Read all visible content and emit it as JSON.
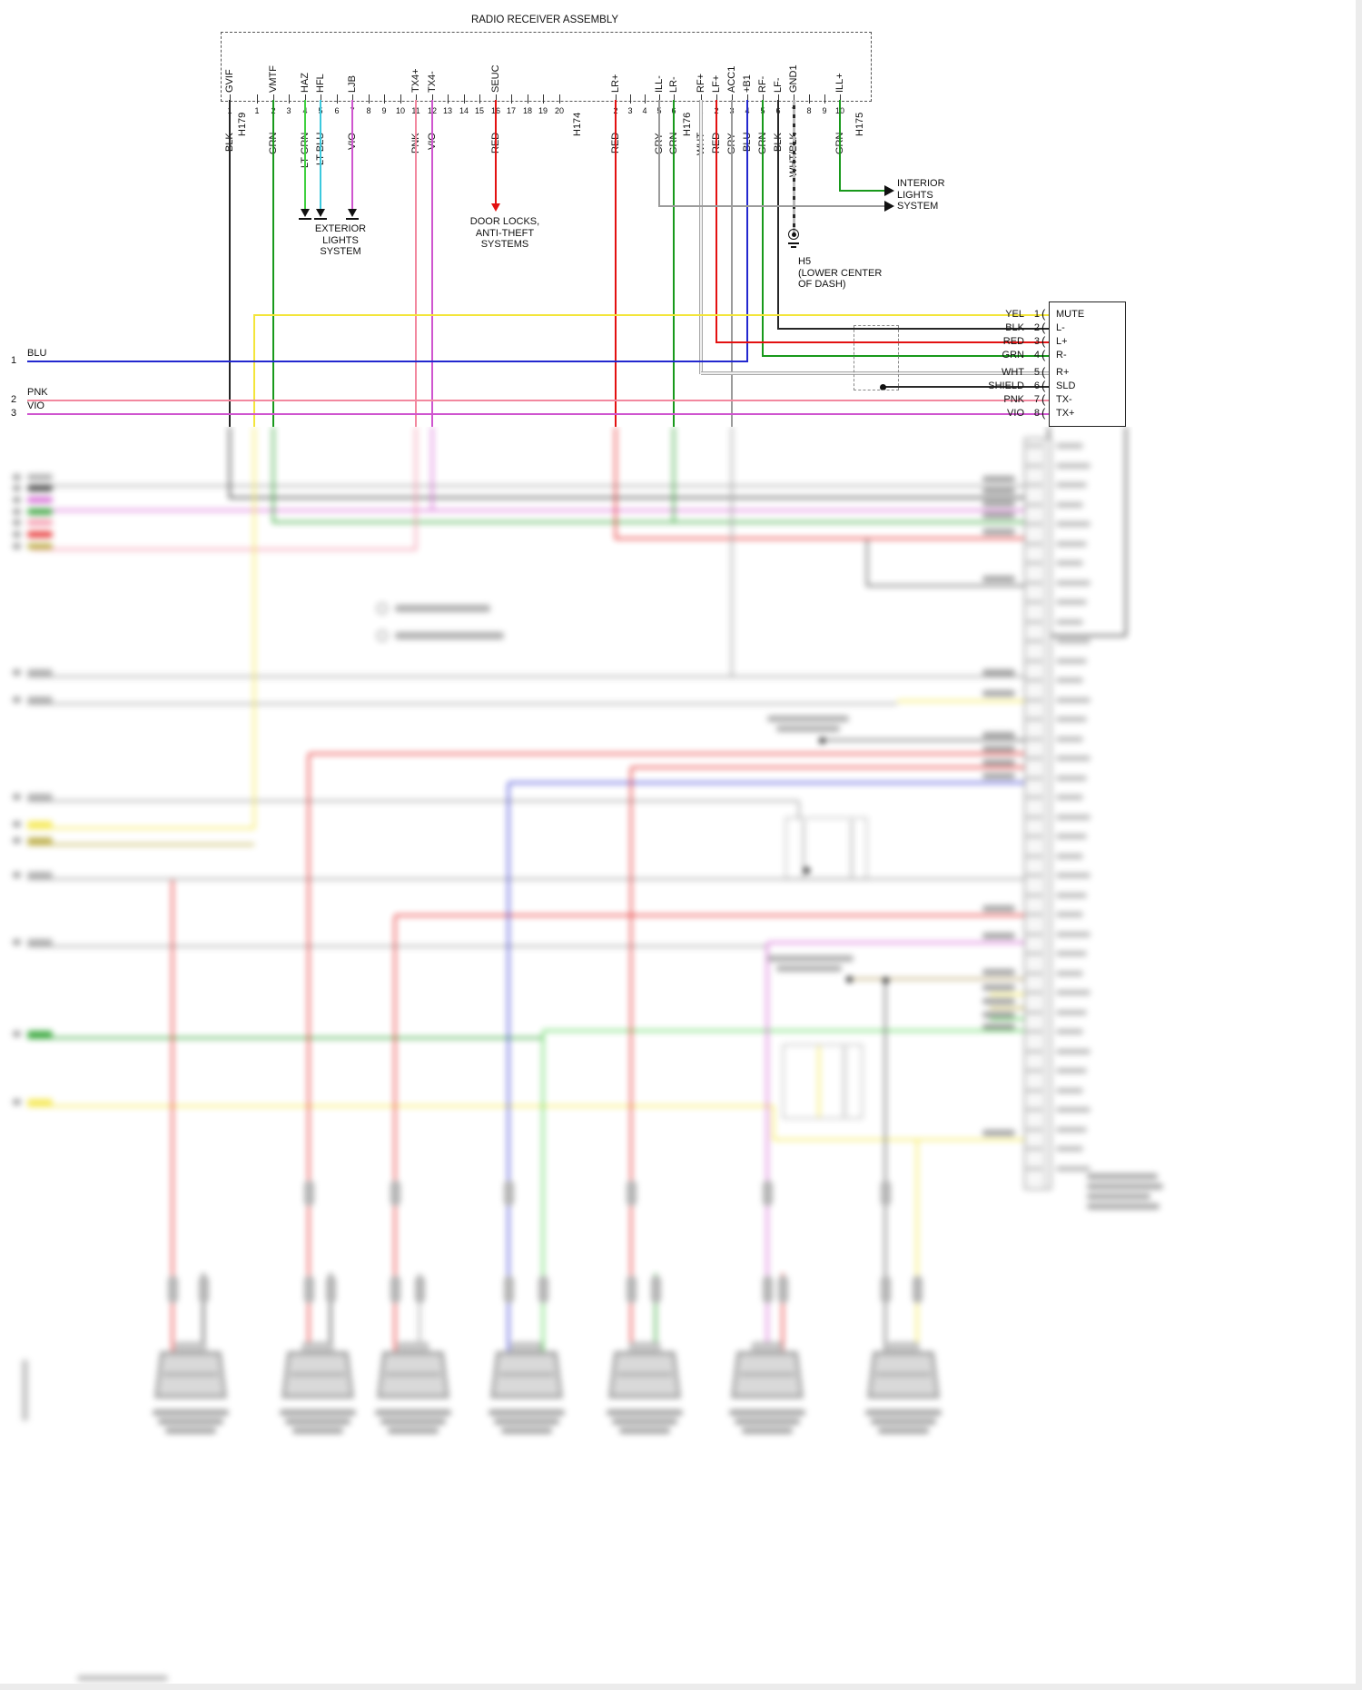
{
  "diagram": {
    "title": "RADIO RECEIVER ASSEMBLY",
    "colors": {
      "BLK": "#262626",
      "GRN": "#18991b",
      "LTGRN": "#3fd03f",
      "LTBLU": "#3cc9de",
      "VIO": "#cf55cf",
      "PNK": "#f2889f",
      "RED": "#e31111",
      "GRY": "#9b9b9b",
      "WHT": "#e7e7e7",
      "BLU": "#2328cf",
      "YEL": "#f3e53a",
      "WHTBLK": "#9b9b9b",
      "SHD": "#2a2a2a",
      "OLV": "#b4a32e",
      "TAN": "#ad9557"
    },
    "connectors": [
      {
        "name": "H179",
        "pins": [
          {
            "n": "1",
            "signal": "GVIF",
            "wire": "BLK"
          }
        ]
      },
      {
        "name": "H174",
        "pins": [
          {
            "n": "1"
          },
          {
            "n": "2",
            "signal": "VMTF",
            "wire": "GRN"
          },
          {
            "n": "3"
          },
          {
            "n": "4",
            "signal": "HAZ",
            "wire": "LT GRN"
          },
          {
            "n": "5",
            "signal": "HFL",
            "wire": "LT BLU"
          },
          {
            "n": "6"
          },
          {
            "n": "7",
            "signal": "LJB",
            "wire": "VIO"
          },
          {
            "n": "8"
          },
          {
            "n": "9"
          },
          {
            "n": "10"
          },
          {
            "n": "11",
            "signal": "TX4+",
            "wire": "PNK"
          },
          {
            "n": "12",
            "signal": "TX4-",
            "wire": "VIO"
          },
          {
            "n": "13"
          },
          {
            "n": "14"
          },
          {
            "n": "15"
          },
          {
            "n": "16",
            "signal": "SEUC",
            "wire": "RED"
          },
          {
            "n": "17"
          },
          {
            "n": "18"
          },
          {
            "n": "19"
          },
          {
            "n": "20"
          }
        ]
      },
      {
        "name": "H176",
        "pins": [
          {
            "n": "2",
            "signal": "LR+",
            "wire": "RED"
          },
          {
            "n": "3"
          },
          {
            "n": "4"
          },
          {
            "n": "5",
            "signal": "ILL-",
            "wire": "GRY"
          },
          {
            "n": "6",
            "signal": "LR-",
            "wire": "GRN"
          }
        ]
      },
      {
        "name": "H175",
        "pins": [
          {
            "n": "1",
            "signal": "RF+",
            "wire": "WHT"
          },
          {
            "n": "2",
            "signal": "LF+",
            "wire": "RED"
          },
          {
            "n": "3",
            "signal": "ACC1",
            "wire": "GRY"
          },
          {
            "n": "4",
            "signal": "+B1",
            "wire": "BLU"
          },
          {
            "n": "5",
            "signal": "RF-",
            "wire": "GRN"
          },
          {
            "n": "6",
            "signal": "LF-",
            "wire": "BLK"
          },
          {
            "n": "7",
            "signal": "GND1",
            "wire": "WHT/BLK"
          },
          {
            "n": "8"
          },
          {
            "n": "9"
          },
          {
            "n": "10",
            "signal": "ILL+",
            "wire": "GRN"
          }
        ]
      }
    ],
    "destinations": {
      "exterior_lights": [
        "EXTERIOR",
        "LIGHTS",
        "SYSTEM"
      ],
      "door_locks": [
        "DOOR LOCKS,",
        "ANTI-THEFT",
        "SYSTEMS"
      ],
      "interior_lights": [
        "INTERIOR",
        "LIGHTS",
        "SYSTEM"
      ]
    },
    "ground": {
      "id": "H5",
      "location_lines": [
        "(LOWER CENTER",
        "OF DASH)"
      ]
    },
    "left_wires": [
      {
        "num": "1",
        "color": "BLU"
      },
      {
        "num": "2",
        "color": "PNK"
      },
      {
        "num": "3",
        "color": "VIO"
      }
    ],
    "right_connector": {
      "rows": [
        {
          "color": "YEL",
          "pin": "1",
          "label": "MUTE"
        },
        {
          "color": "BLK",
          "pin": "2",
          "label": "L-"
        },
        {
          "color": "RED",
          "pin": "3",
          "label": "L+"
        },
        {
          "color": "GRN",
          "pin": "4",
          "label": "R-"
        },
        {
          "color": "WHT",
          "pin": "5",
          "label": "R+"
        },
        {
          "color": "SHIELD",
          "pin": "6",
          "label": "SLD"
        },
        {
          "color": "PNK",
          "pin": "7",
          "label": "TX-"
        },
        {
          "color": "VIO",
          "pin": "8",
          "label": "TX+"
        }
      ]
    }
  }
}
